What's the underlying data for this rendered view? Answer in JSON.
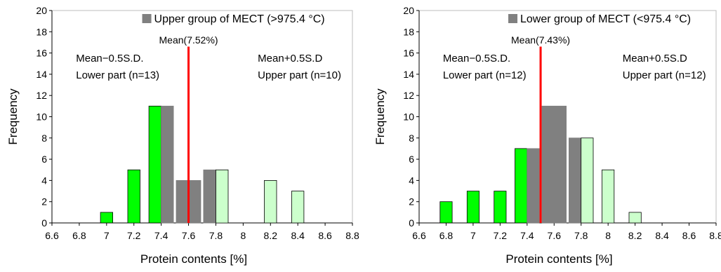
{
  "chart_data": [
    {
      "type": "bar",
      "legend": {
        "label": "Upper group of MECT (>975.4 °C)",
        "placement": "top-center",
        "color": "#808080"
      },
      "xlabel": "Protein contents  [%]",
      "ylabel": "Frequency",
      "xlim": [
        6.6,
        8.8
      ],
      "ylim": [
        0,
        20
      ],
      "x_ticks": [
        "6.6",
        "6.8",
        "7",
        "7.2",
        "7.4",
        "7.6",
        "7.8",
        "8",
        "8.2",
        "8.4",
        "8.6",
        "8.8"
      ],
      "y_ticks": [
        "0",
        "2",
        "4",
        "6",
        "8",
        "10",
        "12",
        "14",
        "16",
        "18",
        "20"
      ],
      "gridlines": false,
      "series": [
        {
          "role": "lower",
          "color": "#00ff00",
          "points": [
            {
              "x": 7.0,
              "y": 1
            },
            {
              "x": 7.2,
              "y": 5
            },
            {
              "x": 7.4,
              "y": 11
            }
          ]
        },
        {
          "role": "middle",
          "color": "#808080",
          "points": [
            {
              "x": 7.4,
              "y": 11
            },
            {
              "x": 7.6,
              "y": 4
            },
            {
              "x": 7.8,
              "y": 5
            }
          ]
        },
        {
          "role": "upper",
          "color": "#ccffcc",
          "points": [
            {
              "x": 7.8,
              "y": 5
            },
            {
              "x": 8.2,
              "y": 4
            },
            {
              "x": 8.4,
              "y": 3
            }
          ]
        }
      ],
      "mean": {
        "x": 7.6,
        "label": "Mean(7.52%)",
        "color": "#ff0000"
      },
      "annotations": [
        {
          "id": "lower",
          "lines": [
            "Mean−0.5S.D.",
            "Lower part (n=13)"
          ]
        },
        {
          "id": "upper",
          "lines": [
            "Mean+0.5S.D",
            "Upper part (n=10)"
          ]
        }
      ]
    },
    {
      "type": "bar",
      "legend": {
        "label": "Lower group of MECT (<975.4 °C)",
        "placement": "top-center",
        "color": "#808080"
      },
      "xlabel": "Protein contents  [%]",
      "ylabel": "Frequency",
      "xlim": [
        6.6,
        8.8
      ],
      "ylim": [
        0,
        20
      ],
      "x_ticks": [
        "6.6",
        "6.8",
        "7",
        "7.2",
        "7.4",
        "7.6",
        "7.8",
        "8",
        "8.2",
        "8.4",
        "8.6",
        "8.8"
      ],
      "y_ticks": [
        "0",
        "2",
        "4",
        "6",
        "8",
        "10",
        "12",
        "14",
        "16",
        "18",
        "20"
      ],
      "gridlines": false,
      "series": [
        {
          "role": "lower",
          "color": "#00ff00",
          "points": [
            {
              "x": 6.8,
              "y": 2
            },
            {
              "x": 7.0,
              "y": 3
            },
            {
              "x": 7.2,
              "y": 3
            },
            {
              "x": 7.4,
              "y": 7
            }
          ]
        },
        {
          "role": "middle",
          "color": "#808080",
          "points": [
            {
              "x": 7.4,
              "y": 7
            },
            {
              "x": 7.6,
              "y": 11
            },
            {
              "x": 7.8,
              "y": 8
            }
          ]
        },
        {
          "role": "upper",
          "color": "#ccffcc",
          "points": [
            {
              "x": 7.8,
              "y": 8
            },
            {
              "x": 8.0,
              "y": 5
            },
            {
              "x": 8.2,
              "y": 1
            }
          ]
        }
      ],
      "mean": {
        "x": 7.5,
        "label": "Mean(7.43%)",
        "color": "#ff0000"
      },
      "annotations": [
        {
          "id": "lower",
          "lines": [
            "Mean−0.5S.D.",
            "Lower part (n=12)"
          ]
        },
        {
          "id": "upper",
          "lines": [
            "Mean+0.5S.D",
            "Upper part (n=12)"
          ]
        }
      ]
    }
  ]
}
